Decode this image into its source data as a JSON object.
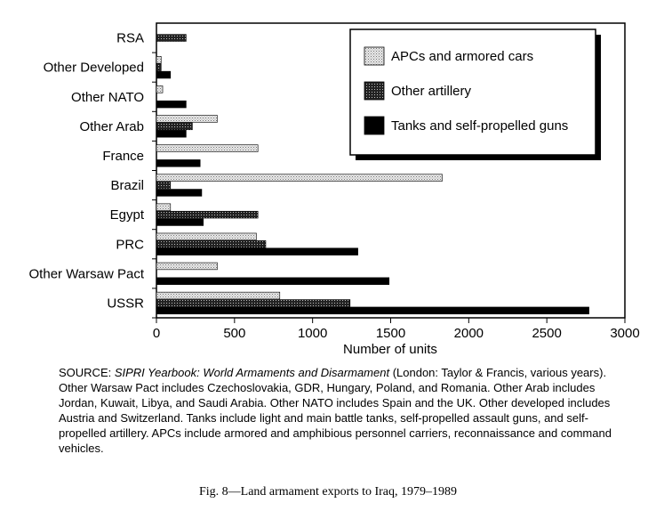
{
  "chart_data": {
    "type": "bar",
    "orientation": "horizontal",
    "categories": [
      "RSA",
      "Other Developed",
      "Other NATO",
      "Other Arab",
      "France",
      "Brazil",
      "Egypt",
      "PRC",
      "Other Warsaw Pact",
      "USSR"
    ],
    "series": [
      {
        "name": "APCs and armored cars",
        "values": [
          0,
          30,
          40,
          390,
          650,
          1830,
          90,
          640,
          390,
          790
        ],
        "pattern": "light-dots"
      },
      {
        "name": "Other artillery",
        "values": [
          190,
          30,
          0,
          230,
          0,
          90,
          650,
          700,
          0,
          1240
        ],
        "pattern": "dense-dots"
      },
      {
        "name": "Tanks and self-propelled guns",
        "values": [
          0,
          90,
          190,
          190,
          280,
          290,
          300,
          1290,
          1490,
          2770
        ],
        "pattern": "solid"
      }
    ],
    "xlabel": "Number of units",
    "ylabel": "",
    "xlim": [
      0,
      3000
    ],
    "xticks": [
      0,
      500,
      1000,
      1500,
      2000,
      2500,
      3000
    ],
    "grid": false,
    "legend_position": "top-right"
  },
  "source_note": {
    "prefix": "SOURCE: ",
    "title": "SIPRI Yearbook: World Armaments and Disarmament",
    "rest": " (London: Taylor & Francis, various years). Other Warsaw Pact includes Czechoslovakia, GDR, Hungary, Poland, and Romania. Other Arab includes Jordan, Kuwait, Libya, and Saudi Arabia. Other NATO includes Spain and the UK. Other developed includes Austria and Switzerland. Tanks include light and main battle tanks, self-propelled assault guns, and self-propelled artillery. APCs include armored and amphibious personnel carriers, reconnaissance and command vehicles."
  },
  "caption": "Fig. 8—Land armament exports to Iraq, 1979–1989"
}
